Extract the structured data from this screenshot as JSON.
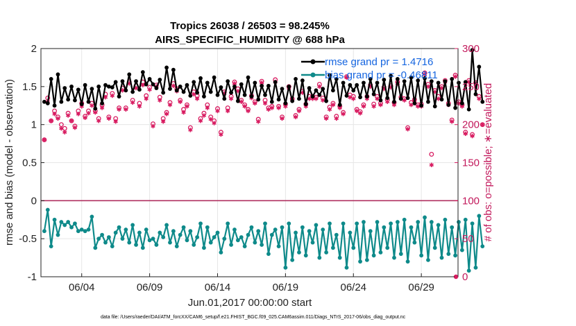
{
  "chart_data": {
    "type": "line",
    "title": "Tropics 26038 / 26503 = 98.245%",
    "subtitle": "AIRS_SPECIFIC_HUMIDITY @ 688 hPa",
    "xlabel": "Jun.01,2017 00:00:00 start",
    "ylabel": "rmse and bias (model - observation)",
    "y2label": "# of obs: o=possible; ∗=evaluated",
    "footer": "data file: /Users/raeder/DAI/ATM_forcXX/CAM6_setup/f.e21.FHIST_BGC.f09_025.CAM6assim.011/Diags_NTrS_2017-06/obs_diag_output.nc",
    "xlim": [
      1,
      31.7
    ],
    "ylim": [
      -1,
      2
    ],
    "y2lim": [
      0,
      300
    ],
    "xticks": [
      {
        "v": 4,
        "label": "06/04"
      },
      {
        "v": 9,
        "label": "06/09"
      },
      {
        "v": 14,
        "label": "06/14"
      },
      {
        "v": 19,
        "label": "06/19"
      },
      {
        "v": 24,
        "label": "06/24"
      },
      {
        "v": 29,
        "label": "06/29"
      }
    ],
    "yticks": [
      {
        "v": 2,
        "label": "2"
      },
      {
        "v": 1.5,
        "label": "1.5"
      },
      {
        "v": 1,
        "label": "1"
      },
      {
        "v": 0.5,
        "label": "0.5"
      },
      {
        "v": 0,
        "label": "0"
      },
      {
        "v": -0.5,
        "label": "-0.5"
      },
      {
        "v": -1,
        "label": "-1"
      }
    ],
    "y2ticks": [
      {
        "v": 300,
        "label": "300"
      },
      {
        "v": 250,
        "label": "250"
      },
      {
        "v": 200,
        "label": "200"
      },
      {
        "v": 150,
        "label": "150"
      },
      {
        "v": 100,
        "label": "100"
      },
      {
        "v": 50,
        "label": "50"
      },
      {
        "v": 0,
        "label": "0"
      }
    ],
    "grid": true,
    "legend_position": "top-right",
    "colors": {
      "rmse": "#000000",
      "bias": "#0e8a8a",
      "obs": "#d81b60",
      "zero": "#b03060",
      "grid": "#e6e6e6"
    },
    "series": [
      {
        "name": "rmse",
        "legend": "rmse grand pr = 1.4716",
        "axis": "left",
        "x_start": 1.25,
        "dx": 0.25,
        "values": [
          1.3,
          1.28,
          1.6,
          1.25,
          1.66,
          1.3,
          1.48,
          1.33,
          1.5,
          1.32,
          1.46,
          1.27,
          1.52,
          1.3,
          1.47,
          1.21,
          1.5,
          1.28,
          1.52,
          1.5,
          1.49,
          1.56,
          1.37,
          1.57,
          1.45,
          1.66,
          1.43,
          1.57,
          1.46,
          1.69,
          1.53,
          1.6,
          1.53,
          1.48,
          1.59,
          1.42,
          1.75,
          1.47,
          1.72,
          1.45,
          1.5,
          1.43,
          1.52,
          1.38,
          1.56,
          1.42,
          1.61,
          1.37,
          1.55,
          1.43,
          1.62,
          1.39,
          1.49,
          1.34,
          1.57,
          1.42,
          1.5,
          1.31,
          1.53,
          1.39,
          1.62,
          1.37,
          1.55,
          1.33,
          1.51,
          1.39,
          1.51,
          1.3,
          1.56,
          1.33,
          1.47,
          1.28,
          1.5,
          1.31,
          1.6,
          1.34,
          1.58,
          1.27,
          1.48,
          1.37,
          1.45,
          1.39,
          1.47,
          1.31,
          1.65,
          1.45,
          1.6,
          1.26,
          1.55,
          1.38,
          1.52,
          1.45,
          1.52,
          1.36,
          1.55,
          1.37,
          1.6,
          1.4,
          1.55,
          1.32,
          1.59,
          1.35,
          1.64,
          1.3,
          1.6,
          1.34,
          1.57,
          1.35,
          1.62,
          1.28,
          1.58,
          1.25,
          1.61,
          1.3,
          1.57,
          1.24,
          1.55,
          1.33,
          1.57,
          1.26,
          1.6,
          1.22,
          1.55,
          1.28,
          1.56,
          1.2,
          1.98,
          1.4,
          1.76,
          1.3
        ]
      },
      {
        "name": "bias",
        "legend": "bias grand pr = -0.46811",
        "axis": "left",
        "x_start": 1.25,
        "dx": 0.25,
        "values": [
          -0.4,
          -0.12,
          -0.6,
          -0.25,
          -0.45,
          -0.28,
          -0.32,
          -0.28,
          -0.35,
          -0.3,
          -0.4,
          -0.38,
          -0.4,
          -0.38,
          -0.21,
          -0.62,
          -0.5,
          -0.45,
          -0.55,
          -0.48,
          -0.6,
          -0.42,
          -0.35,
          -0.5,
          -0.38,
          -0.55,
          -0.32,
          -0.58,
          -0.42,
          -0.62,
          -0.38,
          -0.52,
          -0.5,
          -0.58,
          -0.42,
          -0.48,
          -0.32,
          -0.55,
          -0.4,
          -0.6,
          -0.45,
          -0.35,
          -0.52,
          -0.4,
          -0.58,
          -0.48,
          -0.3,
          -0.62,
          -0.35,
          -0.55,
          -0.48,
          -0.42,
          -0.68,
          -0.5,
          -0.3,
          -0.58,
          -0.38,
          -0.52,
          -0.48,
          -0.6,
          -0.45,
          -0.35,
          -0.55,
          -0.4,
          -0.58,
          -0.3,
          -0.7,
          -0.45,
          -0.38,
          -0.6,
          -0.35,
          -0.88,
          -0.3,
          -0.78,
          -0.42,
          -0.68,
          -0.35,
          -0.72,
          -0.4,
          -0.55,
          -0.32,
          -0.75,
          -0.38,
          -0.68,
          -0.3,
          -0.62,
          -0.45,
          -0.75,
          -0.3,
          -0.88,
          -0.42,
          -0.62,
          -0.3,
          -0.8,
          -0.28,
          -0.78,
          -0.4,
          -0.72,
          -0.28,
          -0.68,
          -0.35,
          -0.62,
          -0.3,
          -0.75,
          -0.28,
          -0.7,
          -0.25,
          -0.8,
          -0.35,
          -0.55,
          -0.28,
          -0.72,
          -0.22,
          -0.78,
          -0.28,
          -0.62,
          -0.32,
          -0.75,
          -0.25,
          -0.7,
          -0.35,
          -0.72,
          -0.28,
          -0.65,
          -0.25,
          -0.92,
          -0.3,
          -0.88,
          -0.2,
          -0.6
        ]
      },
      {
        "name": "obs_possible",
        "axis": "right",
        "marker": "o",
        "x_start": 1.25,
        "dx": 0.25,
        "values": [
          180,
          235,
          205,
          218,
          210,
          200,
          195,
          215,
          205,
          198,
          218,
          228,
          211,
          218,
          228,
          218,
          208,
          226,
          240,
          210,
          241,
          208,
          222,
          248,
          222,
          256,
          232,
          251,
          228,
          256,
          238,
          249,
          201,
          252,
          236,
          208,
          216,
          229,
          254,
          247,
          232,
          220,
          226,
          196,
          243,
          238,
          208,
          215,
          226,
          210,
          205,
          221,
          190,
          243,
          222,
          237,
          256,
          247,
          232,
          226,
          220,
          238,
          230,
          207,
          257,
          232,
          222,
          224,
          259,
          224,
          210,
          227,
          250,
          234,
          212,
          220,
          244,
          227,
          237,
          237,
          236,
          253,
          235,
          210,
          223,
          228,
          211,
          224,
          216,
          263,
          239,
          237,
          220,
          217,
          226,
          237,
          252,
          227,
          237,
          228,
          249,
          233,
          251,
          229,
          256,
          236,
          234,
          196,
          229,
          233,
          226,
          227,
          268,
          253,
          161,
          245,
          237,
          250,
          258,
          228,
          206,
          265,
          230,
          226,
          190,
          258,
          187,
          255,
          237,
          200
        ]
      },
      {
        "name": "obs_evaluated",
        "axis": "right",
        "marker": "*",
        "x_start": 1.25,
        "dx": 0.25,
        "values": [
          180,
          230,
          205,
          214,
          208,
          195,
          190,
          212,
          205,
          196,
          214,
          224,
          209,
          215,
          225,
          216,
          205,
          222,
          236,
          208,
          238,
          204,
          220,
          245,
          220,
          254,
          229,
          248,
          224,
          252,
          234,
          246,
          198,
          250,
          232,
          204,
          214,
          226,
          251,
          244,
          230,
          216,
          224,
          193,
          240,
          234,
          205,
          212,
          222,
          207,
          202,
          218,
          187,
          241,
          218,
          234,
          254,
          244,
          230,
          224,
          218,
          235,
          228,
          204,
          255,
          228,
          220,
          222,
          256,
          222,
          208,
          224,
          248,
          232,
          210,
          218,
          242,
          224,
          234,
          234,
          234,
          250,
          232,
          208,
          220,
          226,
          208,
          222,
          214,
          262,
          236,
          234,
          218,
          215,
          224,
          234,
          250,
          224,
          234,
          226,
          247,
          230,
          249,
          226,
          254,
          234,
          232,
          194,
          226,
          231,
          224,
          224,
          266,
          250,
          147,
          243,
          234,
          248,
          256,
          226,
          204,
          263,
          228,
          224,
          188,
          256,
          185,
          253,
          234,
          200
        ]
      }
    ]
  }
}
